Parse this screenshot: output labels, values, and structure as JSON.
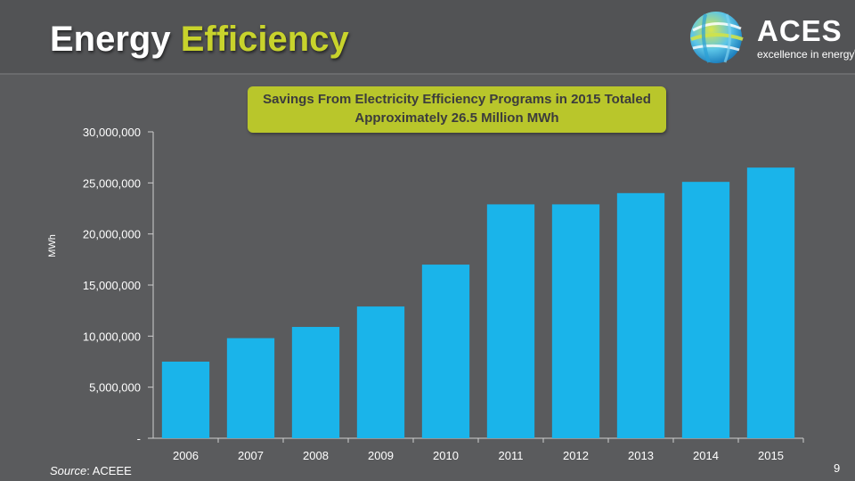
{
  "header": {
    "title_main": "Energy",
    "title_accent": "Efficiency"
  },
  "logo": {
    "name": "ACES",
    "tagline": "excellence in energy",
    "registered_mark": "®"
  },
  "callout": {
    "text": "Savings From Electricity Efficiency Programs in 2015 Totaled Approximately 26.5 Million MWh"
  },
  "chart_data": {
    "type": "bar",
    "title": "",
    "xlabel": "",
    "ylabel": "MWh",
    "categories": [
      "2006",
      "2007",
      "2008",
      "2009",
      "2010",
      "2011",
      "2012",
      "2013",
      "2014",
      "2015"
    ],
    "values": [
      7500000,
      9800000,
      10900000,
      12900000,
      17000000,
      22900000,
      22900000,
      24000000,
      25100000,
      26500000
    ],
    "ylim": [
      0,
      30000000
    ],
    "yticks": [
      0,
      5000000,
      10000000,
      15000000,
      20000000,
      25000000,
      30000000
    ],
    "ytick_labels": [
      "-",
      "5,000,000",
      "10,000,000",
      "15,000,000",
      "20,000,000",
      "25,000,000",
      "30,000,000"
    ],
    "bar_color": "#1ab4ea",
    "grid": false,
    "legend": "none"
  },
  "footer": {
    "source_label": "Source",
    "source_value": ": ACEEE",
    "page_number": "9"
  }
}
